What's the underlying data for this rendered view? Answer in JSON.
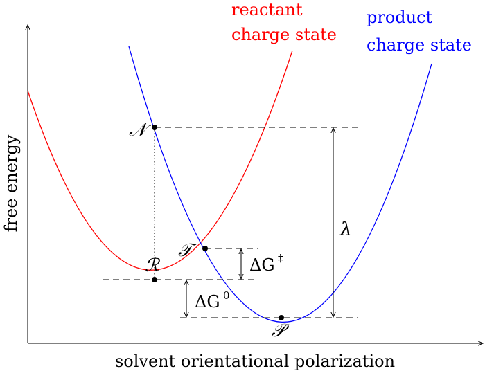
{
  "axes": {
    "x_label": "solvent orientational polarization",
    "y_label": "free energy"
  },
  "curves": {
    "reactant": {
      "label_line1": "reactant",
      "label_line2": "charge state",
      "color": "#ff0000"
    },
    "product": {
      "label_line1": "product",
      "label_line2": "charge state",
      "color": "#0000ff"
    }
  },
  "points": {
    "N": "𝒩",
    "R": "ℛ",
    "T": "𝒯",
    "P": "𝒫"
  },
  "annotations": {
    "lambda": "λ",
    "dG_act_base": "ΔG",
    "dG_act_sup": "‡",
    "dG0_base": "ΔG",
    "dG0_sup": "0"
  }
}
